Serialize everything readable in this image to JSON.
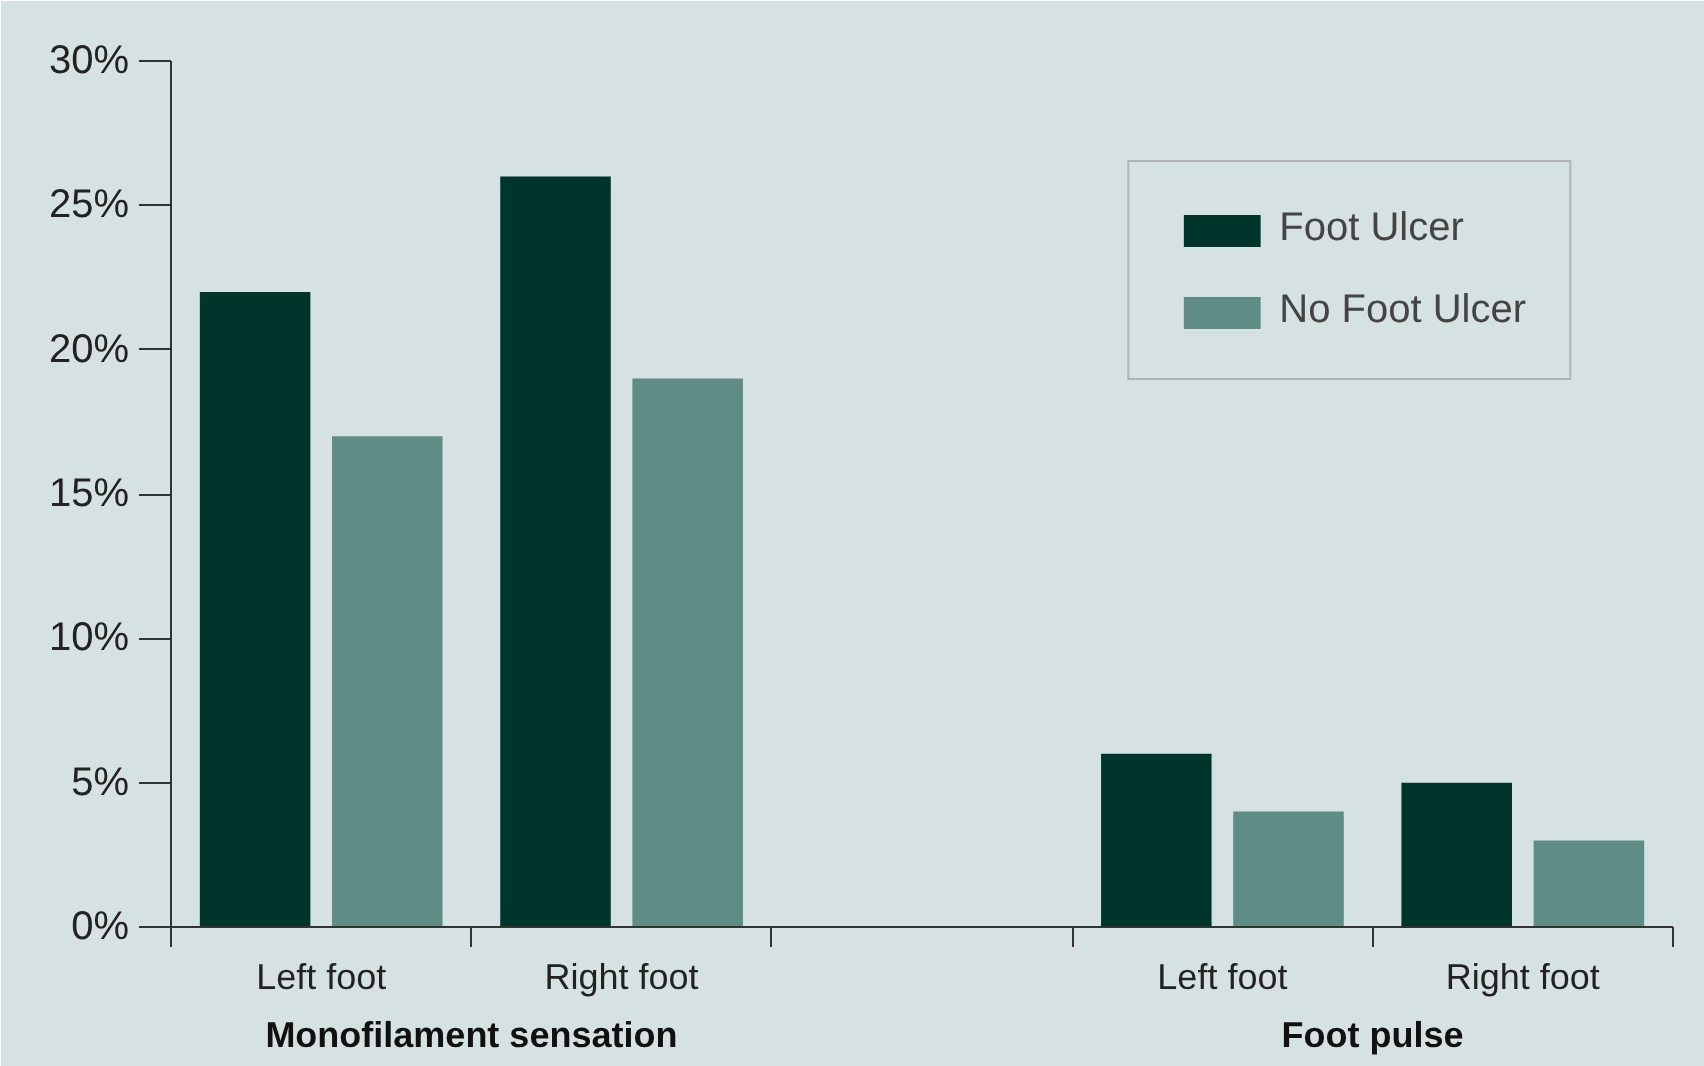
{
  "chart_data": {
    "type": "bar",
    "categories": [
      "Left foot",
      "Right foot",
      null,
      "Left foot",
      "Right foot"
    ],
    "series": [
      {
        "name": "Foot Ulcer",
        "color": "#00352c",
        "values": [
          22,
          26,
          null,
          6,
          5
        ]
      },
      {
        "name": "No Foot Ulcer",
        "color": "#5f8d85",
        "values": [
          17,
          19,
          null,
          4,
          3
        ]
      }
    ],
    "ylim": [
      0,
      30
    ],
    "yticks": [
      {
        "value": 0,
        "label": "0%"
      },
      {
        "value": 5,
        "label": "5%"
      },
      {
        "value": 10,
        "label": "10%"
      },
      {
        "value": 15,
        "label": "15%"
      },
      {
        "value": 20,
        "label": "20%"
      },
      {
        "value": 25,
        "label": "25%"
      },
      {
        "value": 30,
        "label": "30%"
      }
    ],
    "annotations": [
      "Monofilament sensation",
      "Foot pulse"
    ],
    "legend": "top right",
    "grid": false
  }
}
